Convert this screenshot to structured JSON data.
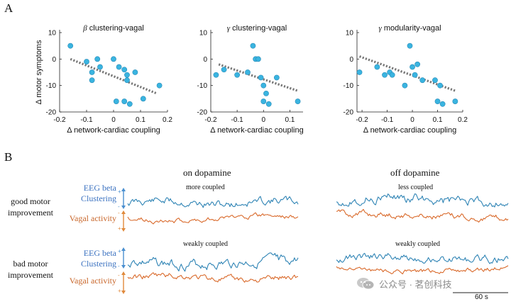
{
  "panel_a": {
    "letter": "A"
  },
  "panel_b": {
    "letter": "B"
  },
  "chart_data": [
    {
      "type": "scatter",
      "title": "β clustering-vagal",
      "title_greek": "β",
      "title_rest": " clustering-vagal",
      "xlabel": "Δ network-cardiac coupling",
      "ylabel": "Δ motor symptoms",
      "xlim": [
        -0.2,
        0.2
      ],
      "ylim": [
        -20,
        10
      ],
      "xticks": [
        -0.2,
        -0.1,
        0,
        0.1,
        0.2
      ],
      "xtick_labels": [
        "-0.2",
        "-0.1",
        "0",
        "0.1",
        "0.2"
      ],
      "yticks": [
        -20,
        -10,
        0,
        10
      ],
      "ytick_labels": [
        "-20",
        "-10",
        "0",
        "10"
      ],
      "points": {
        "x": [
          -0.16,
          -0.1,
          -0.08,
          -0.08,
          -0.06,
          -0.05,
          0.0,
          0.01,
          0.02,
          0.04,
          0.04,
          0.05,
          0.05,
          0.06,
          0.08,
          0.11,
          0.17
        ],
        "y": [
          5,
          -1,
          -5,
          -8,
          0,
          -3,
          0,
          -16,
          -3,
          -4,
          -16,
          -6,
          -8,
          -17,
          -5,
          -15,
          -10
        ]
      },
      "trend": {
        "x": [
          -0.16,
          0.16
        ],
        "y": [
          0,
          -13
        ]
      }
    },
    {
      "type": "scatter",
      "title": "γ clustering-vagal",
      "title_greek": "γ",
      "title_rest": " clustering-vagal",
      "xlabel": "Δ network-cardiac coupling",
      "ylabel": "",
      "xlim": [
        -0.2,
        0.15
      ],
      "ylim": [
        -20,
        10
      ],
      "xticks": [
        -0.2,
        -0.1,
        0,
        0.1
      ],
      "xtick_labels": [
        "-0.2",
        "-0.1",
        "0",
        "0.1"
      ],
      "yticks": [
        -20,
        -10,
        0,
        10
      ],
      "ytick_labels": [
        "-20",
        "-10",
        "0",
        "10"
      ],
      "points": {
        "x": [
          -0.18,
          -0.15,
          -0.1,
          -0.06,
          -0.04,
          -0.03,
          -0.02,
          -0.01,
          0.0,
          0.01,
          0.0,
          0.02,
          0.05,
          0.13
        ],
        "y": [
          -6,
          -4,
          -6,
          -5,
          5,
          0,
          0,
          -7,
          -10,
          -13,
          -16,
          -17,
          -7,
          -16
        ]
      },
      "trend": {
        "x": [
          -0.17,
          0.13
        ],
        "y": [
          -2,
          -12
        ]
      }
    },
    {
      "type": "scatter",
      "title": "γ modularity-vagal",
      "title_greek": "γ",
      "title_rest": " modularity-vagal",
      "xlabel": "Δ network-cardiac coupling",
      "ylabel": "",
      "xlim": [
        -0.22,
        0.2
      ],
      "ylim": [
        -20,
        10
      ],
      "xticks": [
        -0.2,
        -0.1,
        0,
        0.1,
        0.2
      ],
      "xtick_labels": [
        "-0.2",
        "-0.1",
        "0",
        "0.1",
        "0.2"
      ],
      "yticks": [
        -20,
        -10,
        0,
        10
      ],
      "ytick_labels": [
        "-20",
        "-10",
        "0",
        "10"
      ],
      "points": {
        "x": [
          -0.21,
          -0.14,
          -0.11,
          -0.09,
          -0.08,
          -0.03,
          -0.01,
          0.0,
          0.01,
          0.02,
          0.04,
          0.09,
          0.1,
          0.11,
          0.12,
          0.17
        ],
        "y": [
          -5,
          -3,
          -6,
          -5,
          -6,
          -10,
          5,
          -3,
          -6,
          -2,
          -8,
          -8,
          -16,
          -10,
          -17,
          -16
        ]
      },
      "trend": {
        "x": [
          -0.21,
          0.17
        ],
        "y": [
          1,
          -12
        ]
      }
    }
  ],
  "panel_b_content": {
    "columns": [
      "on dopamine",
      "off dopamine"
    ],
    "rows": [
      {
        "label_line1": "good motor",
        "label_line2": "improvement"
      },
      {
        "label_line1": "bad motor",
        "label_line2": "improvement"
      }
    ],
    "annotations": {
      "on_good": "more coupled",
      "off_good": "less coupled",
      "on_bad": "weakly coupled",
      "off_bad": "weakly coupled"
    },
    "signal_labels": {
      "eeg_line1": "EEG beta",
      "eeg_line2": "Clustering",
      "vagal": "Vagal activity"
    },
    "sign_plus": "+",
    "sign_minus": "-",
    "scale_bar_label": "60 s",
    "colors": {
      "eeg": "#2f84b5",
      "vagal": "#d9692a",
      "arrow_eeg": "#4a8fd0",
      "arrow_vagal": "#e08a3c",
      "marker": "#3ab4e0"
    }
  },
  "watermark": {
    "text": "公众号 · 茗创科技",
    "icon": "wechat-icon"
  }
}
